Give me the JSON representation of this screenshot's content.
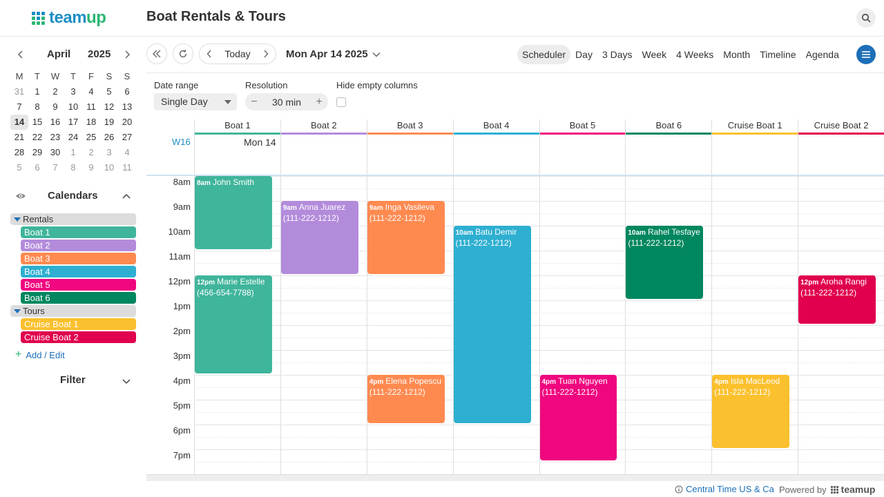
{
  "header": {
    "logo_text_team": "team",
    "logo_text_up": "up",
    "calendar_title": "Boat Rentals & Tours",
    "search_icon": "search-icon"
  },
  "mini_calendar": {
    "month": "April",
    "year": "2025",
    "dow": [
      "M",
      "T",
      "W",
      "T",
      "F",
      "S",
      "S"
    ],
    "weeks": [
      [
        "31",
        "1",
        "2",
        "3",
        "4",
        "5",
        "6"
      ],
      [
        "7",
        "8",
        "9",
        "10",
        "11",
        "12",
        "13"
      ],
      [
        "14",
        "15",
        "16",
        "17",
        "18",
        "19",
        "20"
      ],
      [
        "21",
        "22",
        "23",
        "24",
        "25",
        "26",
        "27"
      ],
      [
        "28",
        "29",
        "30",
        "1",
        "2",
        "3",
        "4"
      ],
      [
        "5",
        "6",
        "7",
        "8",
        "9",
        "10",
        "11"
      ]
    ]
  },
  "sidebar": {
    "calendars_title": "Calendars",
    "folders": [
      {
        "label": "Rentals",
        "items": [
          {
            "label": "Boat 1",
            "color": "#3fb59b"
          },
          {
            "label": "Boat 2",
            "color": "#b38bdb"
          },
          {
            "label": "Boat 3",
            "color": "#ff8a50"
          },
          {
            "label": "Boat 4",
            "color": "#2eafd1"
          },
          {
            "label": "Boat 5",
            "color": "#f0077f"
          },
          {
            "label": "Boat 6",
            "color": "#00875f"
          }
        ]
      },
      {
        "label": "Tours",
        "items": [
          {
            "label": "Cruise Boat 1",
            "color": "#fbc02d"
          },
          {
            "label": "Cruise Boat 2",
            "color": "#e0004d"
          }
        ]
      }
    ],
    "add_edit": "Add / Edit",
    "filter_title": "Filter"
  },
  "toolbar": {
    "today": "Today",
    "date_label": "Mon Apr 14 2025",
    "views": [
      "Scheduler",
      "Day",
      "3 Days",
      "Week",
      "4 Weeks",
      "Month",
      "Timeline",
      "Agenda"
    ],
    "active_view": "Scheduler"
  },
  "options": {
    "date_range_label": "Date range",
    "date_range_value": "Single Day",
    "resolution_label": "Resolution",
    "resolution_value": "30 min",
    "hide_empty_label": "Hide empty columns",
    "hide_empty_checked": false
  },
  "scheduler": {
    "week_number": "W16",
    "day_label": "Mon 14",
    "columns": [
      {
        "label": "Boat 1",
        "color": "#3fb59b"
      },
      {
        "label": "Boat 2",
        "color": "#b38bdb"
      },
      {
        "label": "Boat 3",
        "color": "#ff8a50"
      },
      {
        "label": "Boat 4",
        "color": "#2eafd1"
      },
      {
        "label": "Boat 5",
        "color": "#f0077f"
      },
      {
        "label": "Boat 6",
        "color": "#00875f"
      },
      {
        "label": "Cruise Boat 1",
        "color": "#fbc02d"
      },
      {
        "label": "Cruise Boat 2",
        "color": "#e0004d"
      }
    ],
    "hours": [
      "8am",
      "9am",
      "10am",
      "11am",
      "12pm",
      "1pm",
      "2pm",
      "3pm",
      "4pm",
      "5pm",
      "6pm",
      "7pm"
    ],
    "events": [
      {
        "col": 0,
        "start": 8,
        "end": 11,
        "time": "8am",
        "title": "John Smith",
        "phone": ""
      },
      {
        "col": 0,
        "start": 12,
        "end": 16,
        "time": "12pm",
        "title": "Marie Estelle",
        "phone": "(456-654-7788)"
      },
      {
        "col": 1,
        "start": 9,
        "end": 12,
        "time": "9am",
        "title": "Anna Juarez",
        "phone": "(111-222-1212)"
      },
      {
        "col": 2,
        "start": 9,
        "end": 12,
        "time": "9am",
        "title": "Inga Vasileva",
        "phone": "(111-222-1212)"
      },
      {
        "col": 2,
        "start": 16,
        "end": 18,
        "time": "4pm",
        "title": "Elena Popescu",
        "phone": "(111-222-1212)"
      },
      {
        "col": 3,
        "start": 10,
        "end": 18,
        "time": "10am",
        "title": "Batu Demir",
        "phone": "(111-222-1212)"
      },
      {
        "col": 4,
        "start": 16,
        "end": 19.5,
        "time": "4pm",
        "title": "Tuan Nguyen",
        "phone": "(111-222-1212)"
      },
      {
        "col": 5,
        "start": 10,
        "end": 13,
        "time": "10am",
        "title": "Rahel Tesfaye",
        "phone": "(111-222-1212)"
      },
      {
        "col": 6,
        "start": 16,
        "end": 19,
        "time": "4pm",
        "title": "Isla MacLeod",
        "phone": "(111-222-1212)"
      },
      {
        "col": 7,
        "start": 12,
        "end": 14,
        "time": "12pm",
        "title": "Aroha Rangi",
        "phone": "(111-222-1212)"
      }
    ]
  },
  "footer": {
    "timezone": "Central Time US & Ca",
    "powered_by": "Powered by",
    "brand": "teamup"
  }
}
